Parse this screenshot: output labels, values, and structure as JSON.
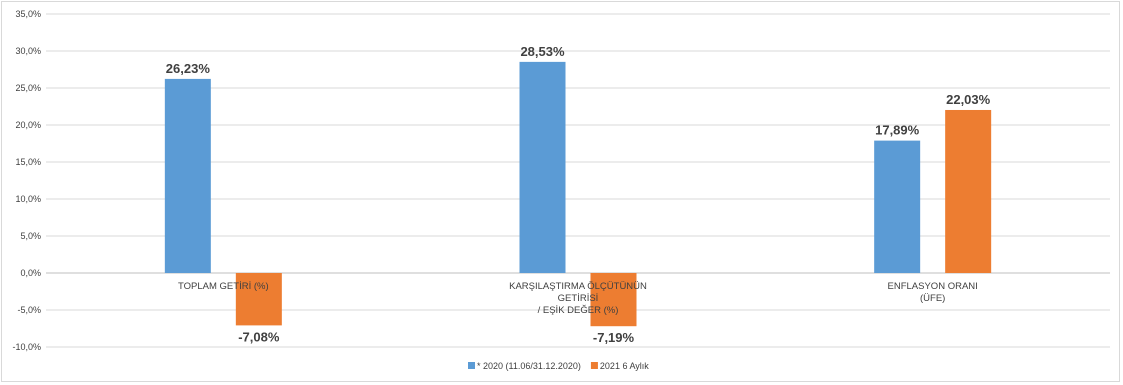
{
  "chart_data": {
    "type": "bar",
    "categories": [
      [
        "TOPLAM GETİRİ (%)"
      ],
      [
        "KARŞILAŞTIRMA ÖLÇÜTÜNÜN",
        "GETİRİSİ",
        "/ EŞİK DEĞER (%)"
      ],
      [
        "ENFLASYON ORANI",
        "(ÜFE)"
      ]
    ],
    "series": [
      {
        "name": "* 2020 (11.06/31.12.2020)",
        "color": "#5b9bd5",
        "values": [
          26.23,
          28.53,
          17.89
        ],
        "labels": [
          "26,23%",
          "28,53%",
          "17,89%"
        ]
      },
      {
        "name": "2021 6 Aylık",
        "color": "#ed7d31",
        "values": [
          -7.08,
          -7.19,
          22.03
        ],
        "labels": [
          "-7,08%",
          "-7,19%",
          "22,03%"
        ]
      }
    ],
    "ylim": [
      -10,
      35
    ],
    "yticks": [
      35,
      30,
      25,
      20,
      15,
      10,
      5,
      0,
      -5,
      -10
    ],
    "ytick_labels": [
      "35,0%",
      "30,0%",
      "25,0%",
      "20,0%",
      "15,0%",
      "10,0%",
      "5,0%",
      "0,0%",
      "-5,0%",
      "-10,0%"
    ],
    "grid": true,
    "legend_position": "bottom"
  }
}
